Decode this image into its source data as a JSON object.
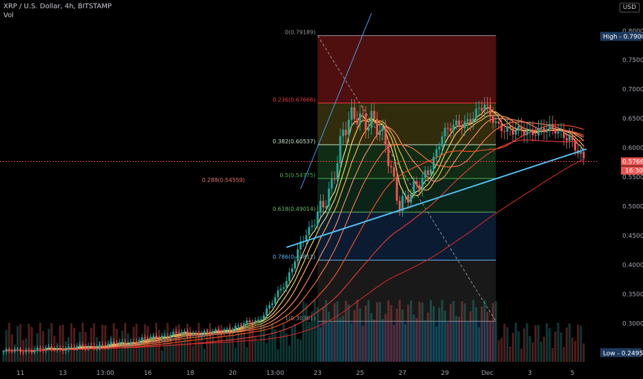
{
  "chart_data": {
    "type": "candlestick",
    "symbol": "XRP / U.S. Dollar, 4h, BITSTAMP",
    "volume_label": "Vol",
    "currency_button": "USD",
    "y_ticks": [
      "0.80000",
      "0.75000",
      "0.70000",
      "0.65000",
      "0.60000",
      "0.55000",
      "0.50000",
      "0.45000",
      "0.40000",
      "0.35000",
      "0.30000",
      "0.25000"
    ],
    "y_tick_values": [
      0.8,
      0.75,
      0.7,
      0.65,
      0.6,
      0.55,
      0.5,
      0.45,
      0.4,
      0.35,
      0.3,
      0.25
    ],
    "ylim": [
      0.2345,
      0.8315
    ],
    "x_ticks": [
      "11",
      "13",
      "13:00",
      "16",
      "18",
      "20",
      "13:00",
      "23",
      "25",
      "27",
      "29",
      "Dec",
      "3",
      "5"
    ],
    "x_tick_index": [
      6,
      21,
      36,
      51,
      66,
      81,
      96,
      111,
      126,
      141,
      156,
      171,
      186,
      201
    ],
    "n_bars": 206,
    "high_label": "High - 0.79000",
    "low_label": "Low - 0.24951",
    "last_price": "0.57666",
    "last_price_value": 0.57666,
    "countdown": "16:30",
    "fib_levels": [
      {
        "label": "0(0.79189)",
        "value": 0.79189,
        "color": "#9598a1"
      },
      {
        "label": "0.236(0.67666)",
        "value": 0.67666,
        "color": "#f23645"
      },
      {
        "label": "0.382(0.60537)",
        "value": 0.60537,
        "color": "#c8e6c9"
      },
      {
        "label": "0.5(0.54775)",
        "value": 0.54775,
        "color": "#4caf50"
      },
      {
        "label": "0.618(0.49014)",
        "value": 0.49014,
        "color": "#66bb6a"
      },
      {
        "label": "0.786(0.40811)",
        "value": 0.40811,
        "color": "#64b5f6"
      },
      {
        "label": "1(0.30361)",
        "value": 0.30361,
        "color": "#9598a1"
      }
    ],
    "fib_overlap_label": "0.288(0.54559)",
    "fib_overlap_value": 0.54559,
    "fib_x_start_index": 111,
    "fib_x_end_index": 174,
    "anchors": {
      "times": [
        0,
        30,
        45,
        60,
        75,
        90,
        100,
        105,
        110,
        115,
        120,
        125,
        130,
        135,
        140,
        145,
        150,
        155,
        160,
        165,
        170,
        175,
        180,
        185,
        190,
        195,
        200,
        203,
        205
      ],
      "close": [
        0.252,
        0.26,
        0.268,
        0.282,
        0.285,
        0.305,
        0.37,
        0.44,
        0.47,
        0.53,
        0.62,
        0.66,
        0.65,
        0.6,
        0.51,
        0.52,
        0.56,
        0.62,
        0.64,
        0.65,
        0.67,
        0.64,
        0.625,
        0.63,
        0.63,
        0.63,
        0.62,
        0.59,
        0.577
      ]
    },
    "volume_max_bars": 0.25
  }
}
